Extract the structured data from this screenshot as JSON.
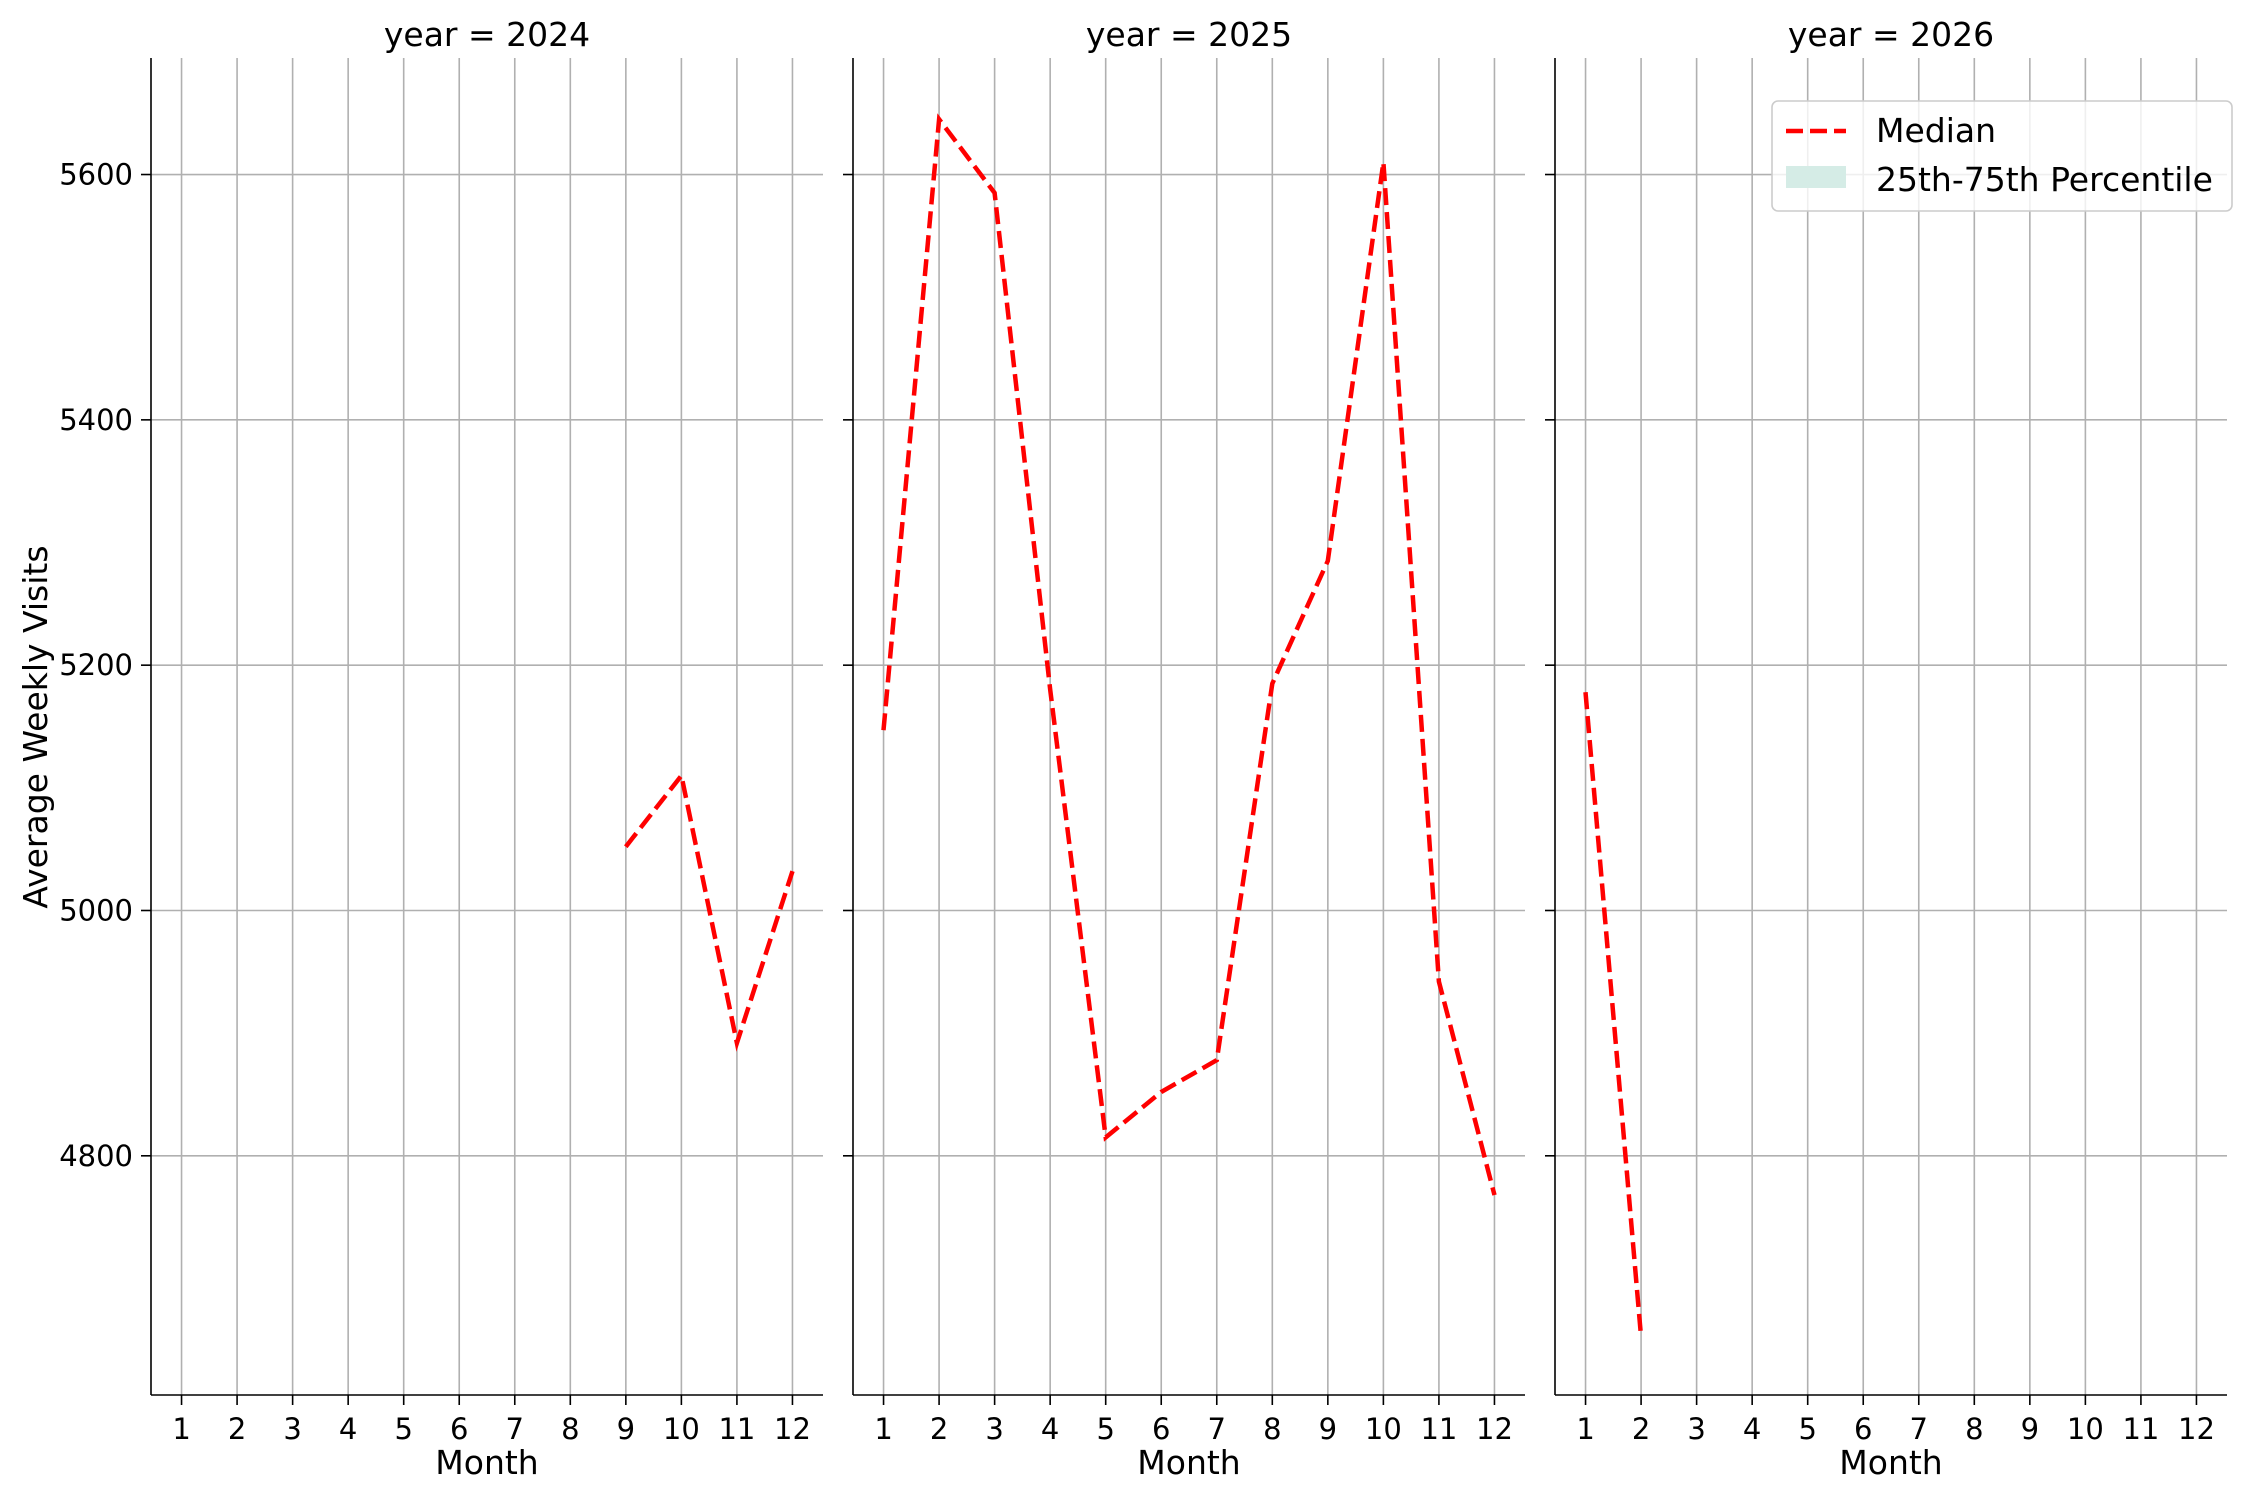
{
  "chart_data": {
    "type": "line",
    "ylabel": "Average Weekly Visits",
    "xlabel": "Month",
    "x_ticks": [
      1,
      2,
      3,
      4,
      5,
      6,
      7,
      8,
      9,
      10,
      11,
      12
    ],
    "y_ticks": [
      4800,
      5000,
      5200,
      5400,
      5600
    ],
    "ylim": [
      4605,
      5695
    ],
    "xlim": [
      0.45,
      12.55
    ],
    "grid": true,
    "shared_y": true,
    "legend": {
      "placement": "top-right of last panel",
      "entries": [
        {
          "label": "Median",
          "style": "dashed-line",
          "color": "#ff0000"
        },
        {
          "label": "25th-75th Percentile",
          "style": "filled-patch",
          "color": "#d5ece6"
        }
      ]
    },
    "panels": [
      {
        "title": "year = 2024",
        "series": [
          {
            "name": "Median",
            "x": [
              9,
              10,
              11,
              12
            ],
            "values": [
              5052,
              5110,
              4892,
              5032
            ]
          }
        ]
      },
      {
        "title": "year = 2025",
        "series": [
          {
            "name": "Median",
            "x": [
              1,
              2,
              3,
              4,
              5,
              6,
              7,
              8,
              9,
              10,
              11,
              12
            ],
            "values": [
              5147,
              5645,
              5585,
              5180,
              4815,
              4852,
              4878,
              5185,
              5285,
              5610,
              4942,
              4768
            ]
          }
        ]
      },
      {
        "title": "year = 2026",
        "series": [
          {
            "name": "Median",
            "x": [
              1,
              2
            ],
            "values": [
              5178,
              4652
            ]
          }
        ]
      }
    ]
  },
  "colors": {
    "median_line": "#ff0000",
    "percentile_band": "#d5ece6",
    "grid": "#b0b0b0",
    "axis": "#000000"
  }
}
